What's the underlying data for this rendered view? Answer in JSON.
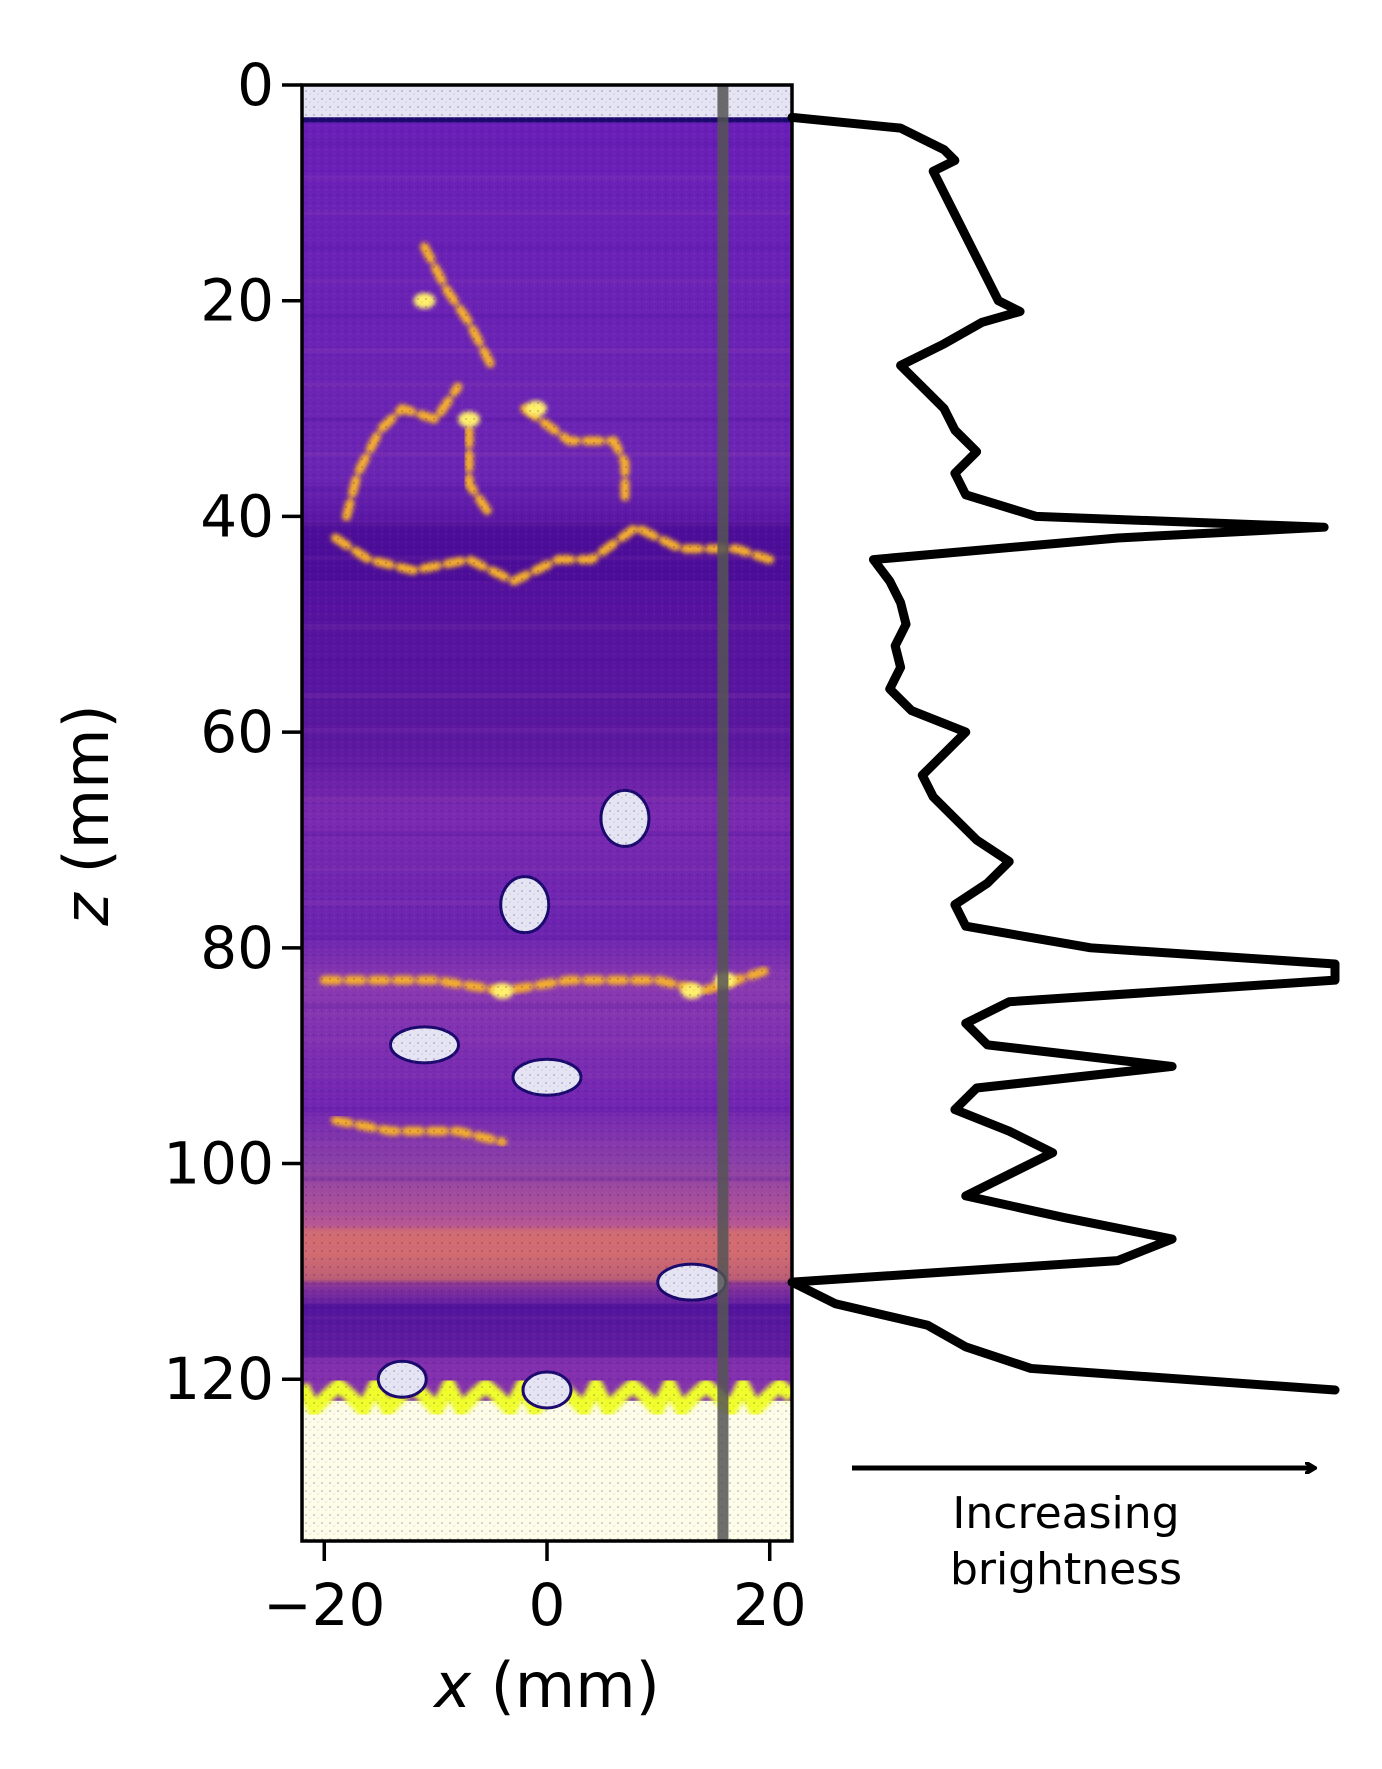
{
  "chart_data": {
    "type": "heatmap",
    "title": "",
    "xlabel": "",
    "ylabel": "",
    "xlabel_var": "x",
    "xlabel_unit": " (mm)",
    "ylabel_var": "z",
    "ylabel_unit": " (mm)",
    "xlim": [
      -22,
      22
    ],
    "ylim": [
      135,
      0
    ],
    "x_ticks": [
      -20,
      0,
      20
    ],
    "x_tick_labels": [
      "−20",
      "0",
      "20"
    ],
    "y_ticks": [
      0,
      20,
      40,
      60,
      80,
      100,
      120
    ],
    "y_tick_labels": [
      "0",
      "20",
      "40",
      "60",
      "80",
      "100",
      "120"
    ],
    "colormap": "plasma",
    "profile_line_x": 15.8,
    "features": {
      "surface_z": 3,
      "bright_bands_z": [
        42,
        83,
        97,
        108
      ],
      "cap_from_z": 122,
      "pebbles": [
        {
          "x": 7,
          "z": 68
        },
        {
          "x": -2,
          "z": 76
        },
        {
          "x": -11,
          "z": 89
        },
        {
          "x": 0,
          "z": 92
        },
        {
          "x": 13,
          "z": 111
        },
        {
          "x": 0,
          "z": 121
        },
        {
          "x": -13,
          "z": 120
        }
      ]
    },
    "profile": {
      "name": "brightness profile",
      "z": [
        3,
        4,
        5,
        6,
        7,
        8,
        10,
        12,
        14,
        16,
        18,
        20,
        21,
        22,
        24,
        26,
        28,
        30,
        32,
        34,
        36,
        38,
        40,
        41,
        42,
        44,
        46,
        48,
        50,
        52,
        54,
        56,
        58,
        60,
        62,
        64,
        66,
        68,
        70,
        72,
        74,
        76,
        78,
        80,
        81.5,
        83,
        85,
        87,
        89,
        91,
        93,
        95,
        97,
        99,
        101,
        103,
        105,
        107,
        109,
        111,
        113,
        115,
        117,
        119,
        121
      ],
      "value": [
        0.0,
        0.2,
        0.24,
        0.28,
        0.3,
        0.26,
        0.28,
        0.3,
        0.32,
        0.34,
        0.36,
        0.38,
        0.42,
        0.35,
        0.28,
        0.2,
        0.24,
        0.28,
        0.3,
        0.34,
        0.3,
        0.32,
        0.45,
        0.98,
        0.6,
        0.15,
        0.18,
        0.2,
        0.21,
        0.19,
        0.2,
        0.18,
        0.22,
        0.32,
        0.28,
        0.24,
        0.26,
        0.3,
        0.34,
        0.4,
        0.36,
        0.3,
        0.32,
        0.55,
        1.0,
        1.0,
        0.4,
        0.32,
        0.36,
        0.7,
        0.34,
        0.3,
        0.4,
        0.48,
        0.4,
        0.32,
        0.5,
        0.7,
        0.6,
        0.0,
        0.08,
        0.25,
        0.32,
        0.44,
        1.0
      ]
    },
    "brightness_arrow_label": [
      "Increasing",
      "brightness"
    ]
  }
}
